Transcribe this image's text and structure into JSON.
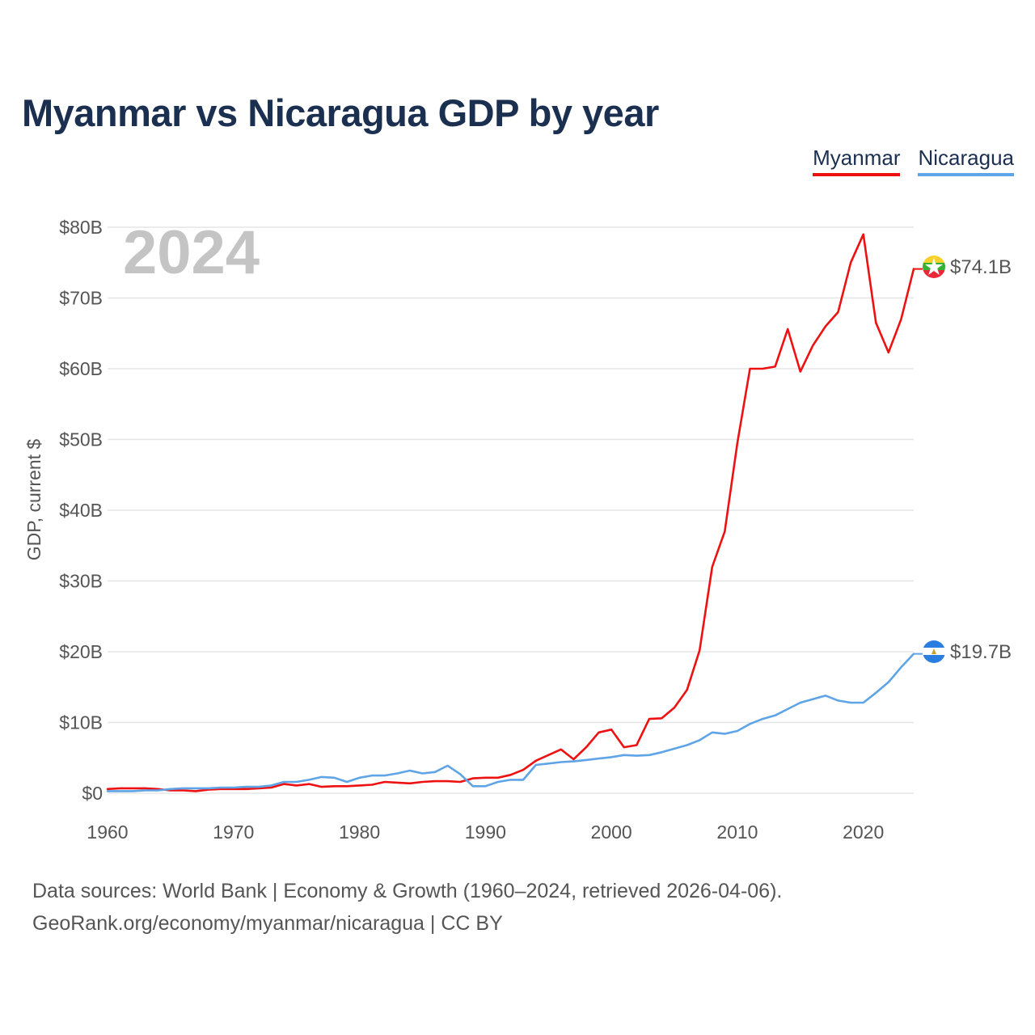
{
  "chart_data": {
    "type": "line",
    "title": "Myanmar vs Nicaragua GDP by year",
    "ylabel": "GDP, current $",
    "xlabel": "",
    "current_year_label": "2024",
    "xlim": [
      1960,
      2024
    ],
    "ylim": [
      0,
      80
    ],
    "y_ticks": [
      0,
      10,
      20,
      30,
      40,
      50,
      60,
      70,
      80
    ],
    "y_tick_labels": [
      "$0",
      "$10B",
      "$20B",
      "$30B",
      "$40B",
      "$50B",
      "$60B",
      "$70B",
      "$80B"
    ],
    "x_ticks": [
      1960,
      1970,
      1980,
      1990,
      2000,
      2010,
      2020
    ],
    "x_tick_labels": [
      "1960",
      "1970",
      "1980",
      "1990",
      "2000",
      "2010",
      "2020"
    ],
    "legend_position": "top-right",
    "x": [
      1960,
      1961,
      1962,
      1963,
      1964,
      1965,
      1966,
      1967,
      1968,
      1969,
      1970,
      1971,
      1972,
      1973,
      1974,
      1975,
      1976,
      1977,
      1978,
      1979,
      1980,
      1981,
      1982,
      1983,
      1984,
      1985,
      1986,
      1987,
      1988,
      1989,
      1990,
      1991,
      1992,
      1993,
      1994,
      1995,
      1996,
      1997,
      1998,
      1999,
      2000,
      2001,
      2002,
      2003,
      2004,
      2005,
      2006,
      2007,
      2008,
      2009,
      2010,
      2011,
      2012,
      2013,
      2014,
      2015,
      2016,
      2017,
      2018,
      2019,
      2020,
      2021,
      2022,
      2023,
      2024
    ],
    "series": [
      {
        "name": "Myanmar",
        "color": "#ee1111",
        "flag": "myanmar-flag-icon",
        "end_label": "$74.1B",
        "values": [
          0.6,
          0.7,
          0.7,
          0.7,
          0.6,
          0.4,
          0.4,
          0.3,
          0.5,
          0.6,
          0.6,
          0.6,
          0.7,
          0.8,
          1.3,
          1.1,
          1.3,
          0.9,
          1.0,
          1.0,
          1.1,
          1.2,
          1.6,
          1.5,
          1.4,
          1.6,
          1.7,
          1.7,
          1.6,
          2.1,
          2.2,
          2.2,
          2.6,
          3.3,
          4.6,
          5.4,
          6.2,
          4.8,
          6.5,
          8.6,
          9.0,
          6.5,
          6.8,
          10.5,
          10.6,
          12.1,
          14.6,
          20.2,
          32.0,
          37.0,
          49.5,
          60.0,
          60.0,
          60.3,
          65.6,
          59.6,
          63.3,
          66.0,
          68.0,
          75.0,
          79.0,
          66.5,
          62.3,
          67.0,
          74.1
        ]
      },
      {
        "name": "Nicaragua",
        "color": "#5ea4e7",
        "flag": "nicaragua-flag-icon",
        "end_label": "$19.7B",
        "values": [
          0.3,
          0.3,
          0.3,
          0.4,
          0.4,
          0.6,
          0.7,
          0.7,
          0.7,
          0.8,
          0.8,
          0.9,
          0.9,
          1.1,
          1.6,
          1.6,
          1.9,
          2.3,
          2.2,
          1.6,
          2.2,
          2.5,
          2.5,
          2.8,
          3.2,
          2.8,
          3.0,
          3.9,
          2.7,
          1.0,
          1.0,
          1.6,
          1.9,
          1.9,
          4.0,
          4.2,
          4.4,
          4.5,
          4.7,
          4.9,
          5.1,
          5.4,
          5.3,
          5.4,
          5.8,
          6.3,
          6.8,
          7.5,
          8.6,
          8.4,
          8.8,
          9.8,
          10.5,
          11.0,
          11.9,
          12.8,
          13.3,
          13.8,
          13.1,
          12.8,
          12.8,
          14.2,
          15.7,
          17.8,
          19.7
        ]
      }
    ],
    "footer_lines": [
      "Data sources: World Bank | Economy & Growth (1960–2024, retrieved 2026-04-06).",
      "GeoRank.org/economy/myanmar/nicaragua | CC BY"
    ]
  }
}
